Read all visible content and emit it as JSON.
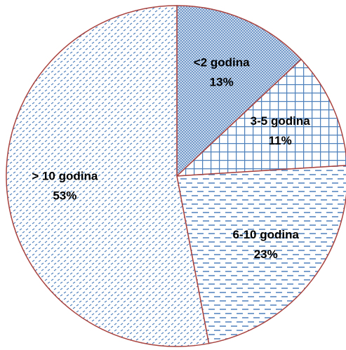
{
  "chart_data": {
    "type": "pie",
    "categories": [
      "<2 godina",
      "3-5 godina",
      "6-10 godina",
      "> 10 godina"
    ],
    "values": [
      13,
      11,
      23,
      53
    ],
    "value_labels": [
      "13%",
      "11%",
      "23%",
      "53%"
    ],
    "color": "#4f81bd",
    "edgecolor": "#a9433f"
  }
}
